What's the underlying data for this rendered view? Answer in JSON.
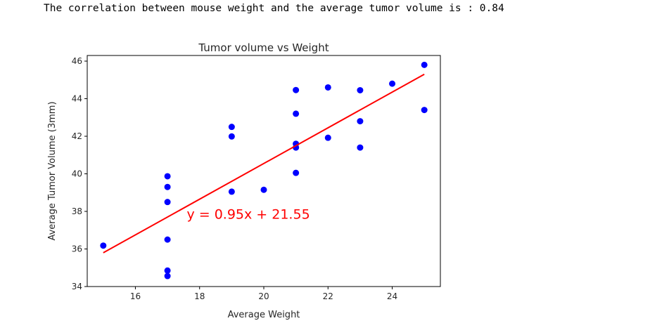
{
  "output": {
    "text": "The correlation between mouse weight and the average tumor volume is : 0.84"
  },
  "chart_data": {
    "type": "scatter",
    "title": "Tumor volume vs Weight",
    "xlabel": "Average Weight",
    "ylabel": "Average Tumor Volume (3mm)",
    "xlim": [
      14.5,
      25.5
    ],
    "ylim": [
      34,
      46.3
    ],
    "xticks": [
      16,
      18,
      20,
      22,
      24
    ],
    "yticks": [
      34,
      36,
      38,
      40,
      42,
      44,
      46
    ],
    "grid": false,
    "series": [
      {
        "color": "#0000ff",
        "points": [
          [
            15,
            36.18
          ],
          [
            17,
            34.56
          ],
          [
            17,
            34.85
          ],
          [
            17,
            36.5
          ],
          [
            17,
            38.5
          ],
          [
            17,
            39.3
          ],
          [
            17,
            39.87
          ],
          [
            19,
            39.05
          ],
          [
            19,
            41.99
          ],
          [
            19,
            42.5
          ],
          [
            20,
            39.15
          ],
          [
            21,
            40.05
          ],
          [
            21,
            41.4
          ],
          [
            21,
            41.6
          ],
          [
            21,
            43.2
          ],
          [
            21,
            44.46
          ],
          [
            22,
            41.92
          ],
          [
            22,
            44.6
          ],
          [
            23,
            41.4
          ],
          [
            23,
            42.8
          ],
          [
            23,
            44.45
          ],
          [
            24,
            44.8
          ],
          [
            25,
            43.4
          ],
          [
            25,
            45.8
          ]
        ]
      }
    ],
    "regression": {
      "color": "#ff0000",
      "slope": 0.95,
      "intercept": 21.55,
      "x_range": [
        15,
        25
      ],
      "label": "y = 0.95x + 21.55",
      "label_anchor": [
        17.6,
        37.6
      ]
    }
  }
}
